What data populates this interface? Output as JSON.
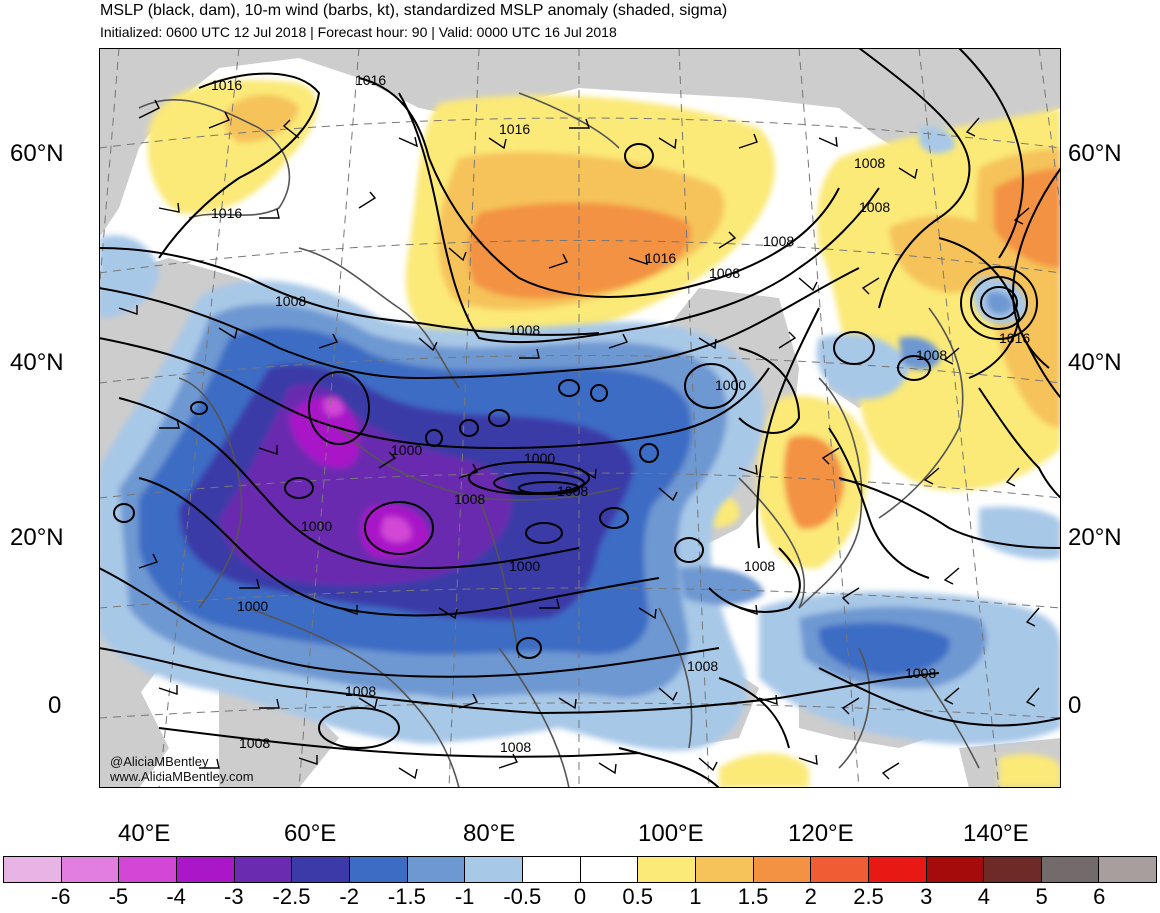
{
  "header": {
    "title": "MSLP (black, dam), 10-m wind (barbs, kt), standardized MSLP anomaly (shaded, sigma)",
    "subtitle": "Initialized: 0600 UTC 12 Jul 2018 | Forecast hour: 90 | Valid: 0000 UTC 16 Jul 2018"
  },
  "map": {
    "lat_labels": [
      "60°N",
      "40°N",
      "20°N",
      "0"
    ],
    "lon_labels": [
      "40°E",
      "60°E",
      "80°E",
      "100°E",
      "120°E",
      "140°E"
    ],
    "isobar_labels": [
      "1016",
      "1016",
      "1016",
      "1016",
      "1016",
      "1008",
      "1008",
      "1008",
      "1008",
      "1008",
      "1008",
      "1008",
      "1000",
      "1000",
      "1000",
      "1000",
      "1000",
      "1008",
      "1008",
      "1000",
      "1008",
      "1008",
      "1008",
      "1008",
      "1008",
      "1008",
      "1016"
    ],
    "credit_handle": "@AliciaMBentley",
    "credit_url": "www.AliciaMBentley.com"
  },
  "colorbar": {
    "ticks": [
      "-6",
      "-5",
      "-4",
      "-3",
      "-2.5",
      "-2",
      "-1.5",
      "-1",
      "-0.5",
      "0",
      "0.5",
      "1",
      "1.5",
      "2",
      "2.5",
      "3",
      "4",
      "5",
      "6"
    ],
    "colors": [
      "#e8b4e6",
      "#e27ee0",
      "#d247d6",
      "#a917c8",
      "#6a2bb0",
      "#3b3aa8",
      "#3d6cc4",
      "#6e98d2",
      "#a8c8e8",
      "#ffffff",
      "#ffffff",
      "#fbe978",
      "#f6c25a",
      "#f39243",
      "#f05c33",
      "#e81915",
      "#a50b0b",
      "#6e2a26",
      "#736b6b",
      "#a89e9e"
    ]
  }
}
